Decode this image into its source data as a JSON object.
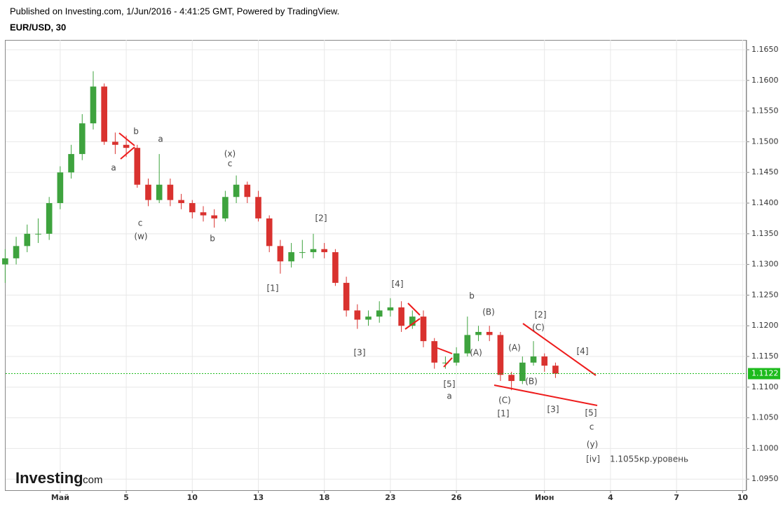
{
  "header": {
    "published": "Published on Investing.com, 1/Jun/2016 - 4:41:25 GMT, Powered by TradingView.",
    "symbol": "EUR/USD, 30"
  },
  "watermark": {
    "brand": "Investing",
    "suffix": ".com"
  },
  "chart_data": {
    "type": "candlestick",
    "up_color": "#3ea33e",
    "down_color": "#d9322f",
    "grid": true,
    "last_price": 1.1122,
    "xlim": [
      -2.48,
      31.18
    ],
    "xticks": [
      {
        "value": 0,
        "label": "Май"
      },
      {
        "value": 3,
        "label": "5"
      },
      {
        "value": 6,
        "label": "10"
      },
      {
        "value": 9,
        "label": "13"
      },
      {
        "value": 12,
        "label": "18"
      },
      {
        "value": 15,
        "label": "23"
      },
      {
        "value": 18,
        "label": "26"
      },
      {
        "value": 22,
        "label": "Июн"
      },
      {
        "value": 25,
        "label": "4"
      },
      {
        "value": 28,
        "label": "7"
      },
      {
        "value": 31,
        "label": "10"
      }
    ],
    "ylim": [
      1.0932,
      1.1666
    ],
    "yticks": [
      {
        "value": 1.165,
        "label": "1.1650"
      },
      {
        "value": 1.16,
        "label": "1.1600"
      },
      {
        "value": 1.155,
        "label": "1.1550"
      },
      {
        "value": 1.15,
        "label": "1.1500"
      },
      {
        "value": 1.145,
        "label": "1.1450"
      },
      {
        "value": 1.14,
        "label": "1.1400"
      },
      {
        "value": 1.135,
        "label": "1.1350"
      },
      {
        "value": 1.13,
        "label": "1.1300"
      },
      {
        "value": 1.125,
        "label": "1.1250"
      },
      {
        "value": 1.12,
        "label": "1.1200"
      },
      {
        "value": 1.115,
        "label": "1.1150"
      },
      {
        "value": 1.11,
        "label": "1.1100"
      },
      {
        "value": 1.105,
        "label": "1.1050"
      },
      {
        "value": 1.1,
        "label": "1.1000"
      },
      {
        "value": 1.095,
        "label": "1.0950"
      }
    ],
    "x": [
      -2.5,
      -2,
      -1.5,
      -1,
      -0.5,
      0,
      0.5,
      1,
      1.5,
      2,
      2.5,
      3,
      3.5,
      4,
      4.5,
      5,
      5.5,
      6,
      6.5,
      7,
      7.5,
      8,
      8.5,
      9,
      9.5,
      10,
      10.5,
      11,
      11.5,
      12,
      12.5,
      13,
      13.5,
      14,
      14.5,
      15,
      15.5,
      16,
      16.5,
      17,
      17.5,
      18,
      18.5,
      19,
      19.5,
      20,
      20.5,
      21,
      21.5,
      22,
      22.5
    ],
    "open": [
      1.13,
      1.131,
      1.133,
      1.135,
      1.135,
      1.14,
      1.145,
      1.148,
      1.153,
      1.159,
      1.15,
      1.1495,
      1.149,
      1.143,
      1.1405,
      1.143,
      1.1405,
      1.14,
      1.1385,
      1.138,
      1.1375,
      1.141,
      1.143,
      1.141,
      1.1375,
      1.133,
      1.1305,
      1.132,
      1.132,
      1.1325,
      1.132,
      1.127,
      1.1225,
      1.121,
      1.1215,
      1.1225,
      1.123,
      1.12,
      1.1215,
      1.1175,
      1.114,
      1.114,
      1.1155,
      1.1185,
      1.119,
      1.1185,
      1.112,
      1.111,
      1.114,
      1.115,
      1.1135
    ],
    "high": [
      1.1325,
      1.1345,
      1.1365,
      1.1375,
      1.141,
      1.146,
      1.1495,
      1.1545,
      1.1615,
      1.1595,
      1.1515,
      1.151,
      1.1495,
      1.144,
      1.148,
      1.144,
      1.1415,
      1.1405,
      1.1395,
      1.139,
      1.142,
      1.1445,
      1.1435,
      1.142,
      1.138,
      1.134,
      1.1335,
      1.134,
      1.135,
      1.1335,
      1.1325,
      1.128,
      1.1235,
      1.1225,
      1.124,
      1.1245,
      1.124,
      1.1225,
      1.1225,
      1.118,
      1.115,
      1.1165,
      1.1215,
      1.12,
      1.12,
      1.119,
      1.1125,
      1.115,
      1.1175,
      1.1155,
      1.114
    ],
    "low": [
      1.127,
      1.13,
      1.132,
      1.1335,
      1.134,
      1.139,
      1.144,
      1.147,
      1.152,
      1.1495,
      1.148,
      1.1475,
      1.1425,
      1.1395,
      1.14,
      1.1395,
      1.139,
      1.1375,
      1.137,
      1.136,
      1.137,
      1.14,
      1.14,
      1.137,
      1.132,
      1.1285,
      1.1295,
      1.131,
      1.131,
      1.131,
      1.1265,
      1.1215,
      1.1195,
      1.12,
      1.1205,
      1.1215,
      1.119,
      1.1195,
      1.1165,
      1.113,
      1.113,
      1.1135,
      1.115,
      1.1175,
      1.1175,
      1.111,
      1.1095,
      1.1105,
      1.1135,
      1.1125,
      1.1115
    ],
    "close": [
      1.131,
      1.133,
      1.135,
      1.135,
      1.14,
      1.145,
      1.148,
      1.153,
      1.159,
      1.15,
      1.1495,
      1.149,
      1.143,
      1.1405,
      1.143,
      1.1405,
      1.14,
      1.1385,
      1.138,
      1.1375,
      1.141,
      1.143,
      1.141,
      1.1375,
      1.133,
      1.1305,
      1.132,
      1.132,
      1.1325,
      1.132,
      1.127,
      1.1225,
      1.121,
      1.1215,
      1.1225,
      1.123,
      1.12,
      1.1215,
      1.1175,
      1.114,
      1.114,
      1.1155,
      1.1185,
      1.119,
      1.1185,
      1.112,
      1.111,
      1.114,
      1.115,
      1.1135,
      1.1122
    ],
    "annotations": [
      "b",
      "a",
      "a",
      "(x)",
      "c",
      "c",
      "(w)",
      "b",
      "[2]",
      "[1]",
      "[4]",
      "[3]",
      "b",
      "(B)",
      "(A)",
      "[5]",
      "a",
      "[2]",
      "(C)",
      "(A)",
      "[4]",
      "(B)",
      "(C)",
      "[1]",
      "[3]",
      "[5]",
      "c",
      "(y)",
      "[iv]",
      "1.1055кр.уровень"
    ]
  }
}
